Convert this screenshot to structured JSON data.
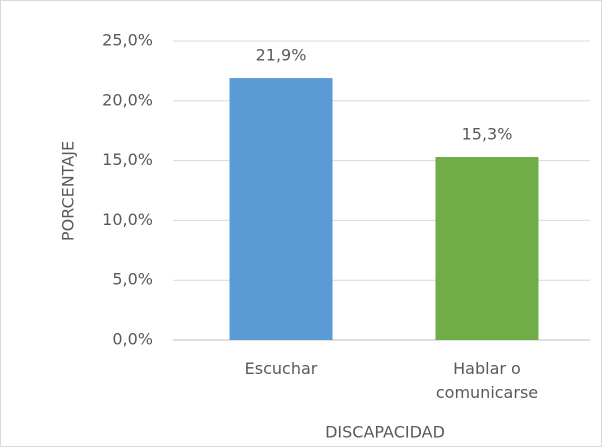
{
  "chart_data": {
    "type": "bar",
    "x_label": "DISCAPACIDAD",
    "y_label": "PORCENTAJE",
    "categories": [
      "Escuchar",
      "Hablar o comunicarse"
    ],
    "values": [
      21.9,
      15.3
    ],
    "value_labels": [
      "21,9%",
      "15,3%"
    ],
    "colors": [
      "#5b9bd5",
      "#70ad47"
    ],
    "ylim": [
      0,
      25
    ],
    "yticks": [
      {
        "value": 0,
        "label": "0,0%"
      },
      {
        "value": 5,
        "label": "5,0%"
      },
      {
        "value": 10,
        "label": "10,0%"
      },
      {
        "value": 15,
        "label": "15,0%"
      },
      {
        "value": 20,
        "label": "20,0%"
      },
      {
        "value": 25,
        "label": "25,0%"
      }
    ],
    "grid": true
  }
}
